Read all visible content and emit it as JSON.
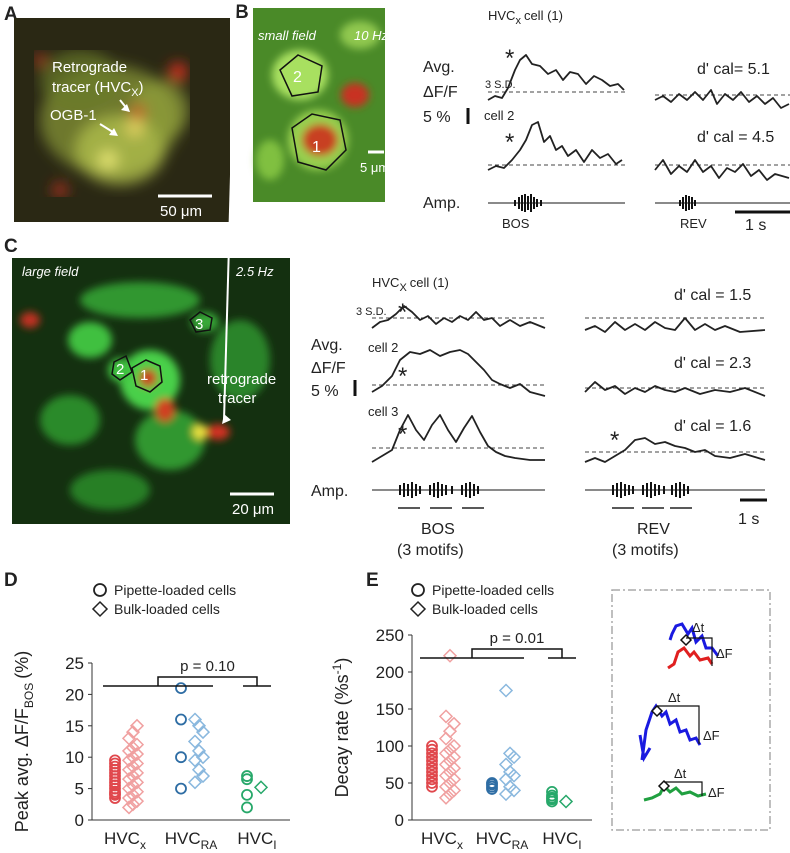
{
  "panel_labels": [
    "A",
    "B",
    "C",
    "D",
    "E"
  ],
  "panel_a": {
    "line1": "Retrograde",
    "line2": "tracer  (HVC",
    "line2_sub": "X",
    "line2_end": ")",
    "dye": "OGB-1",
    "scale_bar": "50 μm"
  },
  "panel_b": {
    "field": "small field",
    "rate": "10 Hz",
    "rois": [
      "2",
      "1"
    ],
    "scale_bar": "5 μm",
    "cell1": {
      "main": "HVC",
      "sub": "x",
      "tail": "cell (1)"
    },
    "cell2": "cell 2",
    "y_label": [
      "Avg.",
      "ΔF/F"
    ],
    "scale_pct": "5 %",
    "sd": "3 S.D.",
    "stars": [
      "*",
      "*"
    ],
    "amp": "Amp.",
    "stimuli": [
      "BOS",
      "REV"
    ],
    "time_bar": "1 s",
    "dprime": [
      "d' cal= 5.1",
      "d' cal = 4.5"
    ]
  },
  "panel_c": {
    "field": "large field",
    "rate": "2.5 Hz",
    "rois": [
      "3",
      "2",
      "1"
    ],
    "tracer": [
      "retrograde",
      "tracer"
    ],
    "scale_bar": "20 μm",
    "cell1": {
      "main": "HVC",
      "sub": "X",
      "tail": "cell (1)"
    },
    "cells": [
      "cell 2",
      "cell 3"
    ],
    "y_label": [
      "Avg.",
      "ΔF/F"
    ],
    "scale_pct": "5 %",
    "sd": "3 S.D.",
    "stars": [
      "*",
      "*",
      "*",
      "*"
    ],
    "amp": "Amp.",
    "stimuli": [
      "BOS",
      "REV"
    ],
    "motifs": [
      "(3 motifs)",
      "(3 motifs)"
    ],
    "time_bar": "1 s",
    "dprime": [
      "d' cal = 1.5",
      "d' cal = 2.3",
      "d' cal = 1.6"
    ]
  },
  "inset": {
    "dt": [
      "Δt",
      "Δt",
      "Δt"
    ],
    "df": [
      "ΔF",
      "ΔF",
      "ΔF"
    ]
  },
  "chart_data": [
    {
      "type": "scatter",
      "legend": [
        "Pipette-loaded cells",
        "Bulk-loaded cells"
      ],
      "y_label": {
        "main": "Peak avg. ΔF/F",
        "sub": "BOS",
        "tail": "(%)"
      },
      "ylim": [
        0,
        25
      ],
      "yticks": [
        0,
        5,
        10,
        15,
        20,
        25
      ],
      "p_value": "p = 0.10",
      "categories": [
        {
          "main": "HVC",
          "sub": "x",
          "pipette": {
            "color": "#e0474c",
            "values": [
              3.5,
              4,
              4.2,
              4.5,
              5,
              5.5,
              6,
              6.5,
              7,
              7.5,
              8,
              8.5,
              9,
              9.5
            ]
          },
          "bulk": {
            "color": "#f0a0a0",
            "values": [
              2,
              2.5,
              3,
              3.5,
              4,
              4.5,
              5,
              5.5,
              6,
              6.5,
              7,
              7.5,
              8,
              8.5,
              9,
              9.5,
              10,
              10.5,
              11,
              11.5,
              12,
              13,
              14,
              15
            ]
          }
        },
        {
          "main": "HVC",
          "sub": "RA",
          "pipette": {
            "color": "#2e6da4",
            "values": [
              21,
              16,
              10,
              5
            ]
          },
          "bulk": {
            "color": "#8ab8de",
            "values": [
              16,
              15,
              14,
              12.5,
              11,
              10,
              9.5,
              8,
              7,
              6
            ]
          }
        },
        {
          "main": "HVC",
          "sub": "I",
          "pipette": {
            "color": "#27a86a",
            "values": [
              7,
              6.5,
              4,
              2
            ]
          },
          "bulk": {
            "color": "#27a86a",
            "values": [
              5.2
            ]
          }
        }
      ]
    },
    {
      "type": "scatter",
      "legend": [
        "Pipette-loaded cells",
        "Bulk-loaded cells"
      ],
      "y_label": {
        "main": "Decay rate (%s",
        "sup": "-1",
        "tail": ")"
      },
      "ylim": [
        0,
        250
      ],
      "yticks": [
        0,
        50,
        100,
        150,
        200,
        250
      ],
      "p_value": "p = 0.01",
      "categories": [
        {
          "main": "HVC",
          "sub": "x",
          "pipette": {
            "color": "#e0474c",
            "values": [
              45,
              50,
              55,
              60,
              65,
              70,
              75,
              80,
              85,
              90,
              95,
              100
            ]
          },
          "bulk": {
            "color": "#f0a0a0",
            "values": [
              30,
              35,
              40,
              45,
              50,
              55,
              60,
              65,
              70,
              75,
              80,
              85,
              90,
              95,
              100,
              110,
              120,
              130,
              140,
              222
            ]
          }
        },
        {
          "main": "HVC",
          "sub": "RA",
          "pipette": {
            "color": "#2e6da4",
            "values": [
              42,
              45,
              48,
              50
            ]
          },
          "bulk": {
            "color": "#8ab8de",
            "values": [
              175,
              90,
              85,
              75,
              65,
              60,
              55,
              45,
              40,
              35
            ]
          }
        },
        {
          "main": "HVC",
          "sub": "I",
          "pipette": {
            "color": "#27a86a",
            "values": [
              38,
              33,
              30,
              25,
              28
            ]
          },
          "bulk": {
            "color": "#27a86a",
            "values": [
              25
            ]
          }
        }
      ]
    }
  ]
}
